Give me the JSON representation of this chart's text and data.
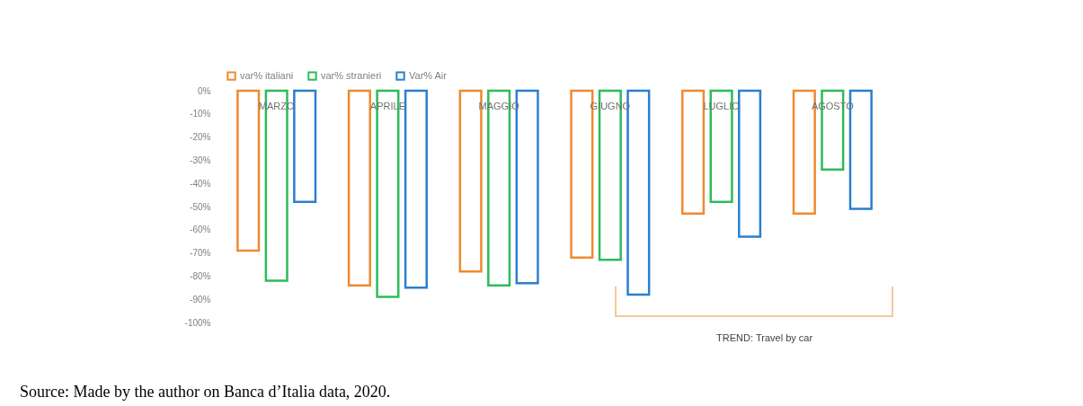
{
  "chart_data": {
    "type": "bar",
    "categories": [
      "MARZO",
      "APRILE",
      "MAGGIO",
      "GIUGNO",
      "LUGLIO",
      "AGOSTO"
    ],
    "series": [
      {
        "name": "var% italiani",
        "color": "#ed8b2f",
        "values": [
          -69,
          -84,
          -78,
          -72,
          -53,
          -53
        ]
      },
      {
        "name": "var% stranieri",
        "color": "#2dbb5a",
        "values": [
          -82,
          -89,
          -84,
          -73,
          -48,
          -34
        ]
      },
      {
        "name": "Var% Air",
        "color": "#2a7fd0",
        "values": [
          -48,
          -85,
          -83,
          -88,
          -63,
          -51
        ]
      }
    ],
    "ylim": [
      -100,
      0
    ],
    "yticks": [
      {
        "value": 0,
        "label": "0%"
      },
      {
        "value": -10,
        "label": "-10%"
      },
      {
        "value": -20,
        "label": "-20%"
      },
      {
        "value": -30,
        "label": "-30%"
      },
      {
        "value": -40,
        "label": "-40%"
      },
      {
        "value": -50,
        "label": "-50%"
      },
      {
        "value": -60,
        "label": "-60%"
      },
      {
        "value": -70,
        "label": "-70%"
      },
      {
        "value": -80,
        "label": "-80%"
      },
      {
        "value": -90,
        "label": "-90%"
      },
      {
        "value": -100,
        "label": "-100%"
      }
    ],
    "grid": false,
    "legend": "top",
    "annotations": [
      "TREND: Travel by car",
      "Source: Made by the author on Banca d’Italia data, 2020."
    ]
  }
}
